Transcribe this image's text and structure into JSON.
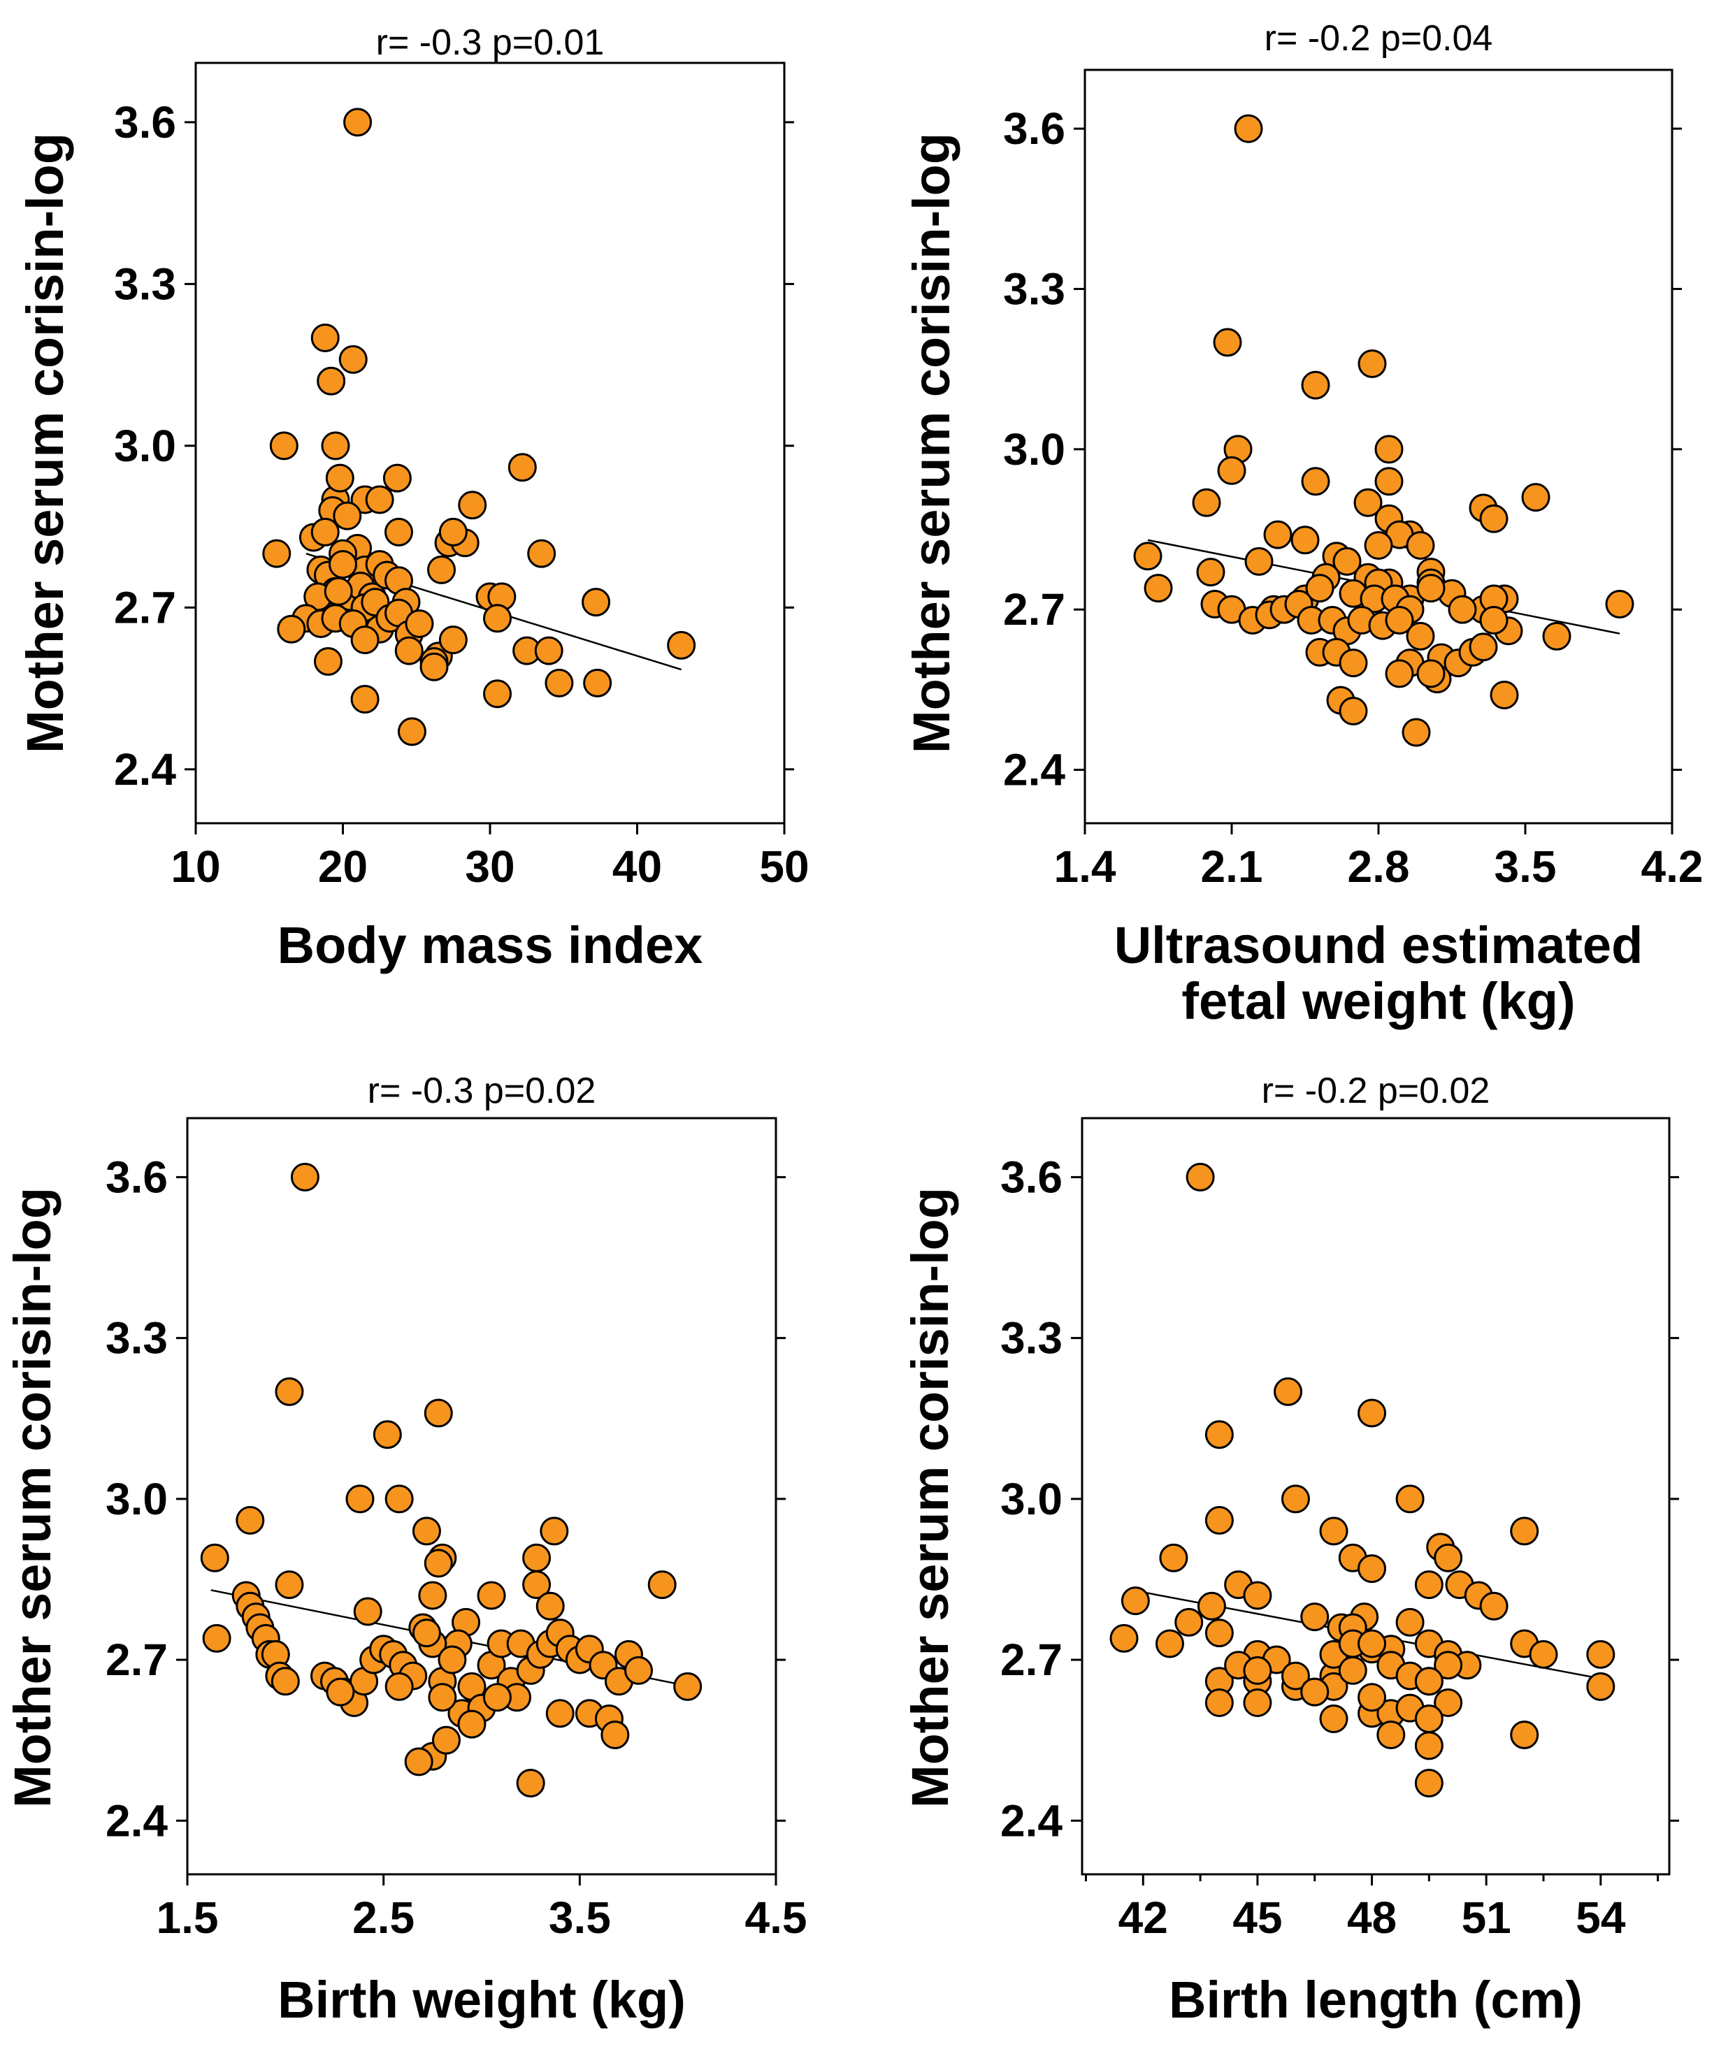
{
  "chart_data": [
    {
      "type": "scatter",
      "title": "",
      "annotation": "r= -0.3  p=0.01",
      "xlabel": [
        "Body mass index"
      ],
      "ylabel": "Mother serum corisin-log",
      "xlim": [
        10,
        50
      ],
      "ylim": [
        2.3,
        3.71
      ],
      "xticks": [
        10,
        20,
        30,
        40,
        50
      ],
      "xtick_labels": [
        "10",
        "20",
        "30",
        "40",
        "50"
      ],
      "yticks": [
        2.4,
        2.7,
        3.0,
        3.3,
        3.6
      ],
      "ytick_labels": [
        "2.4",
        "2.7",
        "3.0",
        "3.3",
        "3.6"
      ],
      "trend": {
        "x": [
          17.5,
          43
        ],
        "y": [
          2.8,
          2.585
        ]
      },
      "x": [
        21,
        18.8,
        20.7,
        19.2,
        19.5,
        16,
        19.5,
        19.8,
        21.5,
        22.5,
        23.7,
        19.3,
        18,
        20.3,
        18.8,
        15.5,
        21,
        23.8,
        20,
        18.5,
        21.5,
        22.5,
        19,
        20,
        20.5,
        21.2,
        22,
        23,
        23.8,
        19.5,
        18.3,
        19.7,
        21.5,
        22.2,
        24.3,
        17.5,
        16.5,
        18.5,
        19.5,
        20.7,
        22.5,
        23.2,
        23.8,
        24.5,
        25.2,
        26.5,
        26.2,
        27.5,
        19,
        21.5,
        24.5,
        27.2,
        28.3,
        27.5,
        26.7,
        28.8,
        30,
        30.8,
        30.5,
        32.2,
        33.5,
        32.5,
        34,
        34.7,
        37.2,
        37.3,
        30.5,
        26.2,
        21.5,
        24.7,
        43
      ],
      "y": [
        3.6,
        3.2,
        3.16,
        3.12,
        3.0,
        3.0,
        2.9,
        2.94,
        2.9,
        2.9,
        2.94,
        2.88,
        2.83,
        2.87,
        2.84,
        2.8,
        2.81,
        2.84,
        2.8,
        2.77,
        2.77,
        2.78,
        2.76,
        2.78,
        2.72,
        2.74,
        2.72,
        2.76,
        2.75,
        2.73,
        2.72,
        2.73,
        2.7,
        2.71,
        2.71,
        2.68,
        2.66,
        2.67,
        2.68,
        2.67,
        2.66,
        2.68,
        2.69,
        2.65,
        2.67,
        2.61,
        2.6,
        2.64,
        2.6,
        2.64,
        2.62,
        2.82,
        2.82,
        2.84,
        2.77,
        2.89,
        2.72,
        2.72,
        2.68,
        2.96,
        2.8,
        2.62,
        2.62,
        2.56,
        2.71,
        2.56,
        2.54,
        2.59,
        2.53,
        2.47,
        2.63
      ]
    },
    {
      "type": "scatter",
      "title": "",
      "annotation": "r= -0.2    p=0.04",
      "xlabel": [
        "Ultrasound estimated",
        "fetal weight (kg)"
      ],
      "ylabel": "Mother serum corisin-log",
      "xlim": [
        1.4,
        4.2
      ],
      "ylim": [
        2.3,
        3.71
      ],
      "xticks": [
        1.4,
        2.1,
        2.8,
        3.5,
        4.2
      ],
      "xtick_labels": [
        "1.4",
        "2.1",
        "2.8",
        "3.5",
        "4.2"
      ],
      "yticks": [
        2.4,
        2.7,
        3.0,
        3.3,
        3.6
      ],
      "ytick_labels": [
        "2.4",
        "2.7",
        "3.0",
        "3.3",
        "3.6"
      ],
      "trend": {
        "x": [
          1.7,
          3.95
        ],
        "y": [
          2.83,
          2.655
        ]
      },
      "x": [
        2.18,
        2.08,
        2.77,
        2.5,
        2.13,
        2.1,
        2.85,
        1.98,
        2.5,
        2.75,
        2.85,
        2.85,
        3.55,
        3.3,
        3.35,
        2.32,
        2.45,
        2.95,
        2.9,
        3.0,
        2.8,
        3.05,
        1.7,
        2.23,
        2.6,
        2.65,
        2.55,
        2.75,
        2.85,
        2.8,
        2.95,
        3.05,
        3.15,
        3.3,
        3.4,
        1.75,
        2.0,
        2.3,
        2.45,
        2.52,
        2.68,
        2.78,
        2.88,
        2.95,
        3.05,
        3.2,
        3.35,
        3.95,
        2.02,
        2.1,
        2.2,
        2.28,
        2.35,
        2.42,
        2.48,
        2.58,
        2.65,
        2.72,
        2.82,
        2.9,
        3.0,
        3.1,
        3.18,
        3.25,
        3.42,
        3.65,
        3.3,
        2.95,
        2.9,
        3.08,
        2.52,
        2.6,
        2.68,
        3.35,
        3.05,
        2.62,
        2.68,
        2.98,
        3.4
      ],
      "y": [
        3.6,
        3.2,
        3.16,
        3.12,
        3.0,
        2.96,
        3.0,
        2.9,
        2.94,
        2.9,
        2.94,
        2.87,
        2.91,
        2.89,
        2.87,
        2.84,
        2.83,
        2.84,
        2.84,
        2.82,
        2.82,
        2.77,
        2.8,
        2.79,
        2.8,
        2.79,
        2.76,
        2.76,
        2.75,
        2.75,
        2.72,
        2.75,
        2.73,
        2.7,
        2.72,
        2.74,
        2.77,
        2.7,
        2.72,
        2.74,
        2.73,
        2.72,
        2.72,
        2.7,
        2.74,
        2.7,
        2.72,
        2.71,
        2.71,
        2.7,
        2.68,
        2.69,
        2.7,
        2.71,
        2.68,
        2.68,
        2.66,
        2.68,
        2.67,
        2.68,
        2.65,
        2.61,
        2.6,
        2.62,
        2.66,
        2.65,
        2.63,
        2.6,
        2.58,
        2.57,
        2.62,
        2.62,
        2.6,
        2.68,
        2.58,
        2.53,
        2.51,
        2.47,
        2.54
      ]
    },
    {
      "type": "scatter",
      "title": "",
      "annotation": "r= -0.3    p=0.02",
      "xlabel": [
        "Birth weight (kg)"
      ],
      "ylabel": "Mother serum corisin-log",
      "xlim": [
        1.5,
        4.5
      ],
      "ylim": [
        2.3,
        3.71
      ],
      "xticks": [
        1.5,
        2.5,
        3.5,
        4.5
      ],
      "xtick_labels": [
        "1.5",
        "2.5",
        "3.5",
        "4.5"
      ],
      "yticks": [
        2.4,
        2.7,
        3.0,
        3.3,
        3.6
      ],
      "ytick_labels": [
        "2.4",
        "2.7",
        "3.0",
        "3.3",
        "3.6"
      ],
      "trend": {
        "x": [
          1.62,
          4.0
        ],
        "y": [
          2.83,
          2.655
        ]
      },
      "x": [
        2.1,
        2.02,
        2.78,
        2.52,
        2.38,
        2.58,
        1.82,
        1.64,
        2.72,
        3.37,
        2.8,
        3.28,
        2.78,
        1.65,
        1.8,
        2.02,
        2.42,
        2.75,
        2.92,
        3.05,
        3.28,
        3.35,
        3.92,
        1.82,
        1.85,
        2.88,
        1.87,
        1.9,
        1.92,
        1.95,
        1.97,
        2.0,
        2.2,
        2.25,
        2.3,
        2.35,
        2.4,
        2.45,
        2.5,
        2.55,
        2.6,
        2.65,
        2.7,
        2.75,
        2.8,
        2.85,
        2.9,
        2.95,
        3.0,
        3.05,
        3.1,
        3.15,
        3.2,
        3.25,
        3.3,
        3.35,
        3.4,
        3.45,
        3.5,
        3.55,
        3.62,
        3.7,
        3.75,
        3.8,
        4.05,
        2.72,
        2.8,
        2.58,
        3.55,
        3.65,
        3.68,
        2.75,
        2.68,
        3.25,
        3.18,
        2.82,
        3.4,
        2.95,
        2.28,
        3.08
      ],
      "y": [
        3.6,
        3.2,
        3.16,
        3.12,
        3.0,
        3.0,
        2.96,
        2.89,
        2.94,
        2.94,
        2.89,
        2.89,
        2.88,
        2.74,
        2.82,
        2.84,
        2.79,
        2.82,
        2.77,
        2.82,
        2.84,
        2.8,
        2.84,
        2.8,
        2.78,
        2.73,
        2.76,
        2.74,
        2.71,
        2.71,
        2.67,
        2.66,
        2.67,
        2.66,
        2.64,
        2.62,
        2.66,
        2.7,
        2.72,
        2.71,
        2.69,
        2.67,
        2.76,
        2.73,
        2.66,
        2.7,
        2.6,
        2.65,
        2.61,
        2.69,
        2.73,
        2.66,
        2.73,
        2.68,
        2.71,
        2.73,
        2.75,
        2.72,
        2.7,
        2.72,
        2.69,
        2.66,
        2.71,
        2.68,
        2.65,
        2.75,
        2.63,
        2.65,
        2.6,
        2.59,
        2.56,
        2.52,
        2.51,
        2.47,
        2.63,
        2.55,
        2.6,
        2.58,
        2.64,
        2.63
      ]
    },
    {
      "type": "scatter",
      "title": "",
      "annotation": "r= -0.2    p=0.02",
      "xlabel": [
        "Birth length (cm)"
      ],
      "ylabel": "Mother serum corisin-log",
      "xlim": [
        40.4,
        55.8
      ],
      "ylim": [
        2.3,
        3.71
      ],
      "xticks": [
        42,
        45,
        48,
        51,
        54
      ],
      "xtick_labels": [
        "42",
        "45",
        "48",
        "51",
        "54"
      ],
      "minor_xticks": [
        40.5,
        43.5,
        46.5,
        49.5,
        52.5,
        55.5
      ],
      "yticks": [
        2.4,
        2.7,
        3.0,
        3.3,
        3.6
      ],
      "ytick_labels": [
        "2.4",
        "2.7",
        "3.0",
        "3.3",
        "3.6"
      ],
      "trend": {
        "x": [
          41.7,
          54
        ],
        "y": [
          2.83,
          2.665
        ]
      },
      "x": [
        43.5,
        45.8,
        48,
        44,
        46,
        49,
        44,
        47,
        52,
        49.8,
        50,
        47.5,
        48,
        42.8,
        44.5,
        45,
        41.8,
        43.8,
        46.5,
        47.2,
        47.8,
        49.5,
        50.3,
        50.8,
        51.2,
        41.5,
        42.7,
        43.2,
        44,
        45,
        45.5,
        46,
        46.5,
        47,
        47.5,
        48,
        48.5,
        49,
        49.5,
        50,
        50.5,
        52,
        52.5,
        54,
        54,
        44,
        44.5,
        45,
        46,
        47,
        47.5,
        48,
        48.5,
        49,
        49.5,
        50,
        45,
        47,
        48,
        48.5,
        49,
        49.5,
        50,
        48,
        49.5,
        47,
        52,
        48.5,
        49.5,
        49.5,
        44,
        45,
        46.5,
        47.5
      ],
      "y": [
        3.6,
        3.2,
        3.16,
        3.12,
        3.0,
        3.0,
        2.96,
        2.94,
        2.94,
        2.91,
        2.89,
        2.89,
        2.87,
        2.89,
        2.84,
        2.82,
        2.81,
        2.8,
        2.78,
        2.76,
        2.78,
        2.84,
        2.84,
        2.82,
        2.8,
        2.74,
        2.73,
        2.77,
        2.75,
        2.71,
        2.7,
        2.65,
        2.64,
        2.67,
        2.76,
        2.72,
        2.72,
        2.77,
        2.73,
        2.71,
        2.69,
        2.73,
        2.71,
        2.71,
        2.65,
        2.66,
        2.69,
        2.66,
        2.67,
        2.71,
        2.73,
        2.73,
        2.69,
        2.67,
        2.66,
        2.69,
        2.68,
        2.65,
        2.6,
        2.6,
        2.61,
        2.66,
        2.62,
        2.63,
        2.59,
        2.59,
        2.56,
        2.56,
        2.54,
        2.47,
        2.62,
        2.62,
        2.64,
        2.68
      ]
    }
  ]
}
